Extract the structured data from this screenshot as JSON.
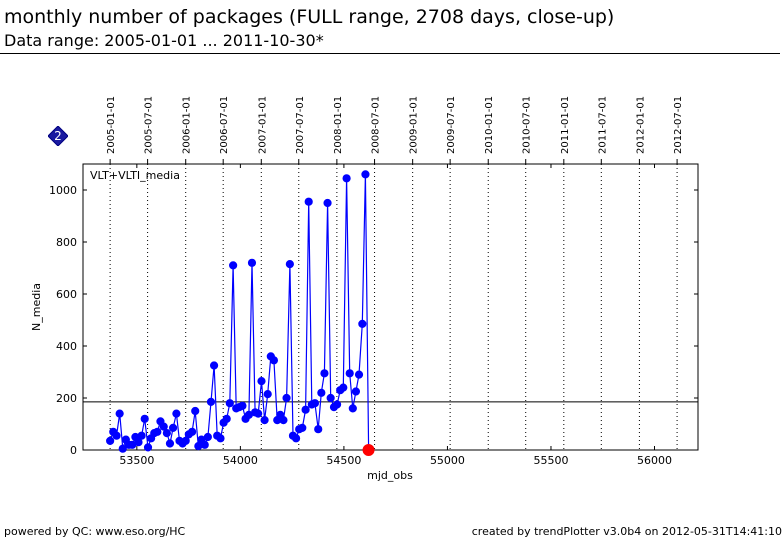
{
  "header": {
    "title": "monthly number of packages (FULL range, 2708 days, close-up)",
    "subtitle": "Data range: 2005-01-01 ... 2011-10-30*"
  },
  "badge": {
    "label": "2",
    "color": "#1a1aa0"
  },
  "footer": {
    "left": "powered by QC: www.eso.org/HC",
    "right": "created by trendPlotter v3.0b4 on 2012-05-31T14:41:10"
  },
  "chart_data": {
    "type": "line",
    "title": "",
    "xlabel": "mjd_obs",
    "ylabel": "N_media",
    "series_label": "VLT+VLTI_media",
    "xlim": [
      53240,
      56210
    ],
    "ylim": [
      0,
      1100
    ],
    "x_ticks": [
      53500,
      54000,
      54500,
      55000,
      55500,
      56000
    ],
    "y_ticks": [
      0,
      200,
      400,
      600,
      800,
      1000
    ],
    "reference_line": 185,
    "date_ticks": [
      {
        "mjd": 53371,
        "label": "2005-01-01"
      },
      {
        "mjd": 53552,
        "label": "2005-07-01"
      },
      {
        "mjd": 53736,
        "label": "2006-01-01"
      },
      {
        "mjd": 53917,
        "label": "2006-07-01"
      },
      {
        "mjd": 54101,
        "label": "2007-01-01"
      },
      {
        "mjd": 54282,
        "label": "2007-07-01"
      },
      {
        "mjd": 54466,
        "label": "2008-01-01"
      },
      {
        "mjd": 54648,
        "label": "2008-07-01"
      },
      {
        "mjd": 54832,
        "label": "2009-01-01"
      },
      {
        "mjd": 55013,
        "label": "2009-07-01"
      },
      {
        "mjd": 55197,
        "label": "2010-01-01"
      },
      {
        "mjd": 55378,
        "label": "2010-07-01"
      },
      {
        "mjd": 55562,
        "label": "2011-01-01"
      },
      {
        "mjd": 55743,
        "label": "2011-07-01"
      },
      {
        "mjd": 55927,
        "label": "2012-01-01"
      },
      {
        "mjd": 56109,
        "label": "2012-07-01"
      }
    ],
    "series": [
      {
        "name": "VLT+VLTI_media",
        "color": "#0000ff",
        "points": [
          [
            53371,
            35
          ],
          [
            53386,
            70
          ],
          [
            53402,
            55
          ],
          [
            53417,
            140
          ],
          [
            53432,
            5
          ],
          [
            53447,
            40
          ],
          [
            53462,
            20
          ],
          [
            53478,
            20
          ],
          [
            53493,
            50
          ],
          [
            53508,
            30
          ],
          [
            53523,
            55
          ],
          [
            53538,
            120
          ],
          [
            53554,
            10
          ],
          [
            53569,
            45
          ],
          [
            53584,
            65
          ],
          [
            53599,
            70
          ],
          [
            53614,
            110
          ],
          [
            53630,
            90
          ],
          [
            53645,
            65
          ],
          [
            53660,
            25
          ],
          [
            53675,
            85
          ],
          [
            53691,
            140
          ],
          [
            53706,
            35
          ],
          [
            53721,
            25
          ],
          [
            53736,
            35
          ],
          [
            53751,
            60
          ],
          [
            53767,
            70
          ],
          [
            53782,
            150
          ],
          [
            53797,
            15
          ],
          [
            53812,
            40
          ],
          [
            53828,
            20
          ],
          [
            53843,
            50
          ],
          [
            53858,
            185
          ],
          [
            53873,
            325
          ],
          [
            53888,
            55
          ],
          [
            53904,
            45
          ],
          [
            53919,
            105
          ],
          [
            53934,
            120
          ],
          [
            53949,
            180
          ],
          [
            53965,
            710
          ],
          [
            53980,
            160
          ],
          [
            53995,
            165
          ],
          [
            54010,
            170
          ],
          [
            54025,
            120
          ],
          [
            54041,
            135
          ],
          [
            54056,
            720
          ],
          [
            54071,
            145
          ],
          [
            54086,
            140
          ],
          [
            54102,
            265
          ],
          [
            54117,
            115
          ],
          [
            54132,
            215
          ],
          [
            54147,
            360
          ],
          [
            54162,
            345
          ],
          [
            54178,
            115
          ],
          [
            54193,
            135
          ],
          [
            54208,
            115
          ],
          [
            54223,
            200
          ],
          [
            54239,
            715
          ],
          [
            54254,
            55
          ],
          [
            54269,
            45
          ],
          [
            54284,
            80
          ],
          [
            54299,
            85
          ],
          [
            54315,
            155
          ],
          [
            54330,
            955
          ],
          [
            54345,
            175
          ],
          [
            54360,
            180
          ],
          [
            54376,
            80
          ],
          [
            54391,
            220
          ],
          [
            54406,
            295
          ],
          [
            54421,
            950
          ],
          [
            54436,
            200
          ],
          [
            54452,
            165
          ],
          [
            54467,
            175
          ],
          [
            54482,
            230
          ],
          [
            54497,
            240
          ],
          [
            54513,
            1045
          ],
          [
            54528,
            295
          ],
          [
            54543,
            160
          ],
          [
            54558,
            225
          ],
          [
            54573,
            290
          ],
          [
            54589,
            485
          ],
          [
            54604,
            1060
          ],
          [
            54619,
            5
          ]
        ]
      },
      {
        "name": "last",
        "color": "#ff0000",
        "points": [
          [
            54619,
            0
          ]
        ]
      }
    ]
  }
}
